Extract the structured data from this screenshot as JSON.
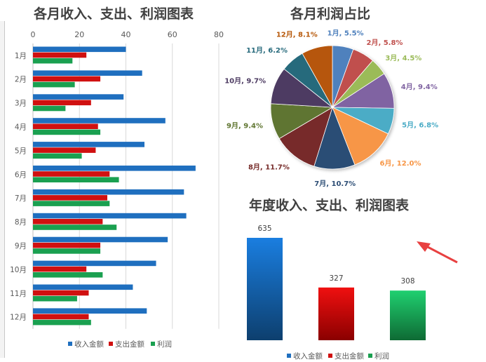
{
  "colors": {
    "income": "#1f6fbf",
    "expense": "#d01010",
    "profit": "#1aa050",
    "grid": "#d9d9d9",
    "arrow": "#e84040",
    "pie": [
      "#4f81bd",
      "#c0504d",
      "#9bbb59",
      "#8064a2",
      "#4bacc6",
      "#f79646",
      "#2c4d75",
      "#772c2a",
      "#5f7530",
      "#4d3b62",
      "#276a7c",
      "#b65708"
    ]
  },
  "chart_data": [
    {
      "type": "bar",
      "orientation": "horizontal",
      "title": "各月收入、支出、利润图表",
      "categories": [
        "1月",
        "2月",
        "3月",
        "4月",
        "5月",
        "6月",
        "7月",
        "8月",
        "9月",
        "10月",
        "11月",
        "12月"
      ],
      "series": [
        {
          "name": "收入金额",
          "values": [
            40,
            47,
            39,
            57,
            48,
            70,
            65,
            66,
            58,
            53,
            43,
            49
          ]
        },
        {
          "name": "支出金额",
          "values": [
            23,
            29,
            25,
            28,
            27,
            33,
            32,
            30,
            29,
            23,
            24,
            24
          ]
        },
        {
          "name": "利润",
          "values": [
            17,
            18,
            14,
            29,
            21,
            37,
            33,
            36,
            29,
            30,
            19,
            25
          ]
        }
      ],
      "xlim": [
        0,
        80
      ],
      "xticks": [
        0,
        20,
        40,
        60,
        80
      ],
      "grid": true,
      "legend": "bottom"
    },
    {
      "type": "pie",
      "title": "各月利润占比",
      "labels": [
        "1月, 5.5%",
        "2月, 5.8%",
        "3月, 4.5%",
        "4月, 9.4%",
        "5月, 6.8%",
        "6月, 12.0%",
        "7月, 10.7%",
        "8月, 11.7%",
        "9月, 9.4%",
        "10月, 9.7%",
        "11月, 6.2%",
        "12月, 8.1%"
      ],
      "values": [
        5.5,
        5.8,
        4.5,
        9.4,
        6.8,
        12.0,
        10.7,
        11.7,
        9.4,
        9.7,
        6.2,
        8.1
      ]
    },
    {
      "type": "bar",
      "title": "年度收入、支出、利润图表",
      "series": [
        {
          "name": "收入金额",
          "value": 635,
          "label": "635"
        },
        {
          "name": "支出金额",
          "value": 327,
          "label": "327"
        },
        {
          "name": "利润",
          "value": 308,
          "label": "308"
        }
      ],
      "legend": "bottom"
    }
  ]
}
